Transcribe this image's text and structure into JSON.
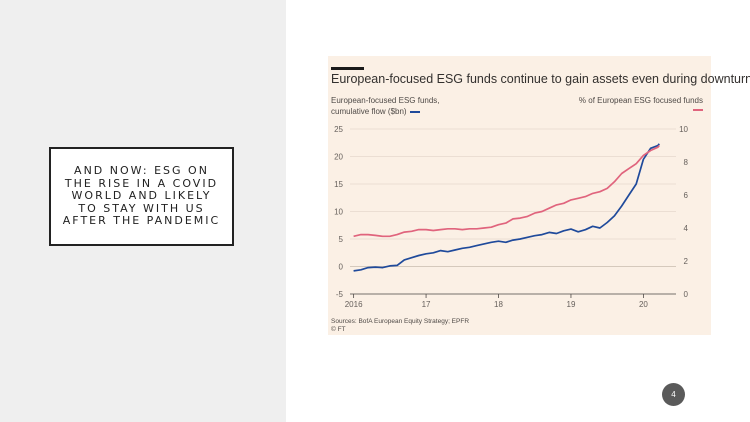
{
  "slide": {
    "heading": "And now: ESG on the rise in a Covid world and likely to stay with us after the pandemic",
    "page_number": "4"
  },
  "chart_data": {
    "type": "line",
    "title": "European-focused ESG funds continue to gain assets even during downturn",
    "left_axis_label": [
      "European-focused ESG funds,",
      "cumulative flow ($bn)"
    ],
    "right_axis_label": "% of European ESG focused funds",
    "source": [
      "Sources: BofA European Equity Strategy; EPFR",
      "© FT"
    ],
    "x_ticks": [
      {
        "value": 2016,
        "label": "2016"
      },
      {
        "value": 2017,
        "label": "17"
      },
      {
        "value": 2018,
        "label": "18"
      },
      {
        "value": 2019,
        "label": "19"
      },
      {
        "value": 2020,
        "label": "20"
      }
    ],
    "xlim": [
      2015.95,
      2020.45
    ],
    "ylim_left": [
      -5,
      25
    ],
    "ylim_right": [
      0,
      10
    ],
    "left_ticks": [
      -5,
      0,
      5,
      10,
      15,
      20,
      25
    ],
    "right_ticks": [
      0,
      2,
      4,
      6,
      8,
      10
    ],
    "grid": true,
    "series": [
      {
        "name": "European-focused ESG funds, cumulative flow ($bn)",
        "axis": "left",
        "color": "#1f4a9b",
        "points": [
          [
            2016.0,
            -0.8
          ],
          [
            2016.1,
            -0.6
          ],
          [
            2016.2,
            -0.2
          ],
          [
            2016.3,
            -0.1
          ],
          [
            2016.4,
            -0.2
          ],
          [
            2016.5,
            0.1
          ],
          [
            2016.6,
            0.2
          ],
          [
            2016.7,
            1.2
          ],
          [
            2016.8,
            1.6
          ],
          [
            2016.9,
            2.0
          ],
          [
            2017.0,
            2.3
          ],
          [
            2017.1,
            2.5
          ],
          [
            2017.2,
            2.9
          ],
          [
            2017.3,
            2.7
          ],
          [
            2017.4,
            3.0
          ],
          [
            2017.5,
            3.3
          ],
          [
            2017.6,
            3.5
          ],
          [
            2017.7,
            3.8
          ],
          [
            2017.8,
            4.1
          ],
          [
            2017.9,
            4.4
          ],
          [
            2018.0,
            4.6
          ],
          [
            2018.1,
            4.4
          ],
          [
            2018.2,
            4.8
          ],
          [
            2018.3,
            5.0
          ],
          [
            2018.4,
            5.3
          ],
          [
            2018.5,
            5.6
          ],
          [
            2018.6,
            5.8
          ],
          [
            2018.7,
            6.2
          ],
          [
            2018.8,
            6.0
          ],
          [
            2018.9,
            6.5
          ],
          [
            2019.0,
            6.8
          ],
          [
            2019.1,
            6.3
          ],
          [
            2019.2,
            6.7
          ],
          [
            2019.3,
            7.3
          ],
          [
            2019.4,
            7.0
          ],
          [
            2019.5,
            8.0
          ],
          [
            2019.6,
            9.2
          ],
          [
            2019.7,
            11.0
          ],
          [
            2019.8,
            13.0
          ],
          [
            2019.9,
            15.0
          ],
          [
            2020.0,
            19.5
          ],
          [
            2020.1,
            21.5
          ],
          [
            2020.2,
            22.0
          ],
          [
            2020.22,
            22.3
          ]
        ]
      },
      {
        "name": "% of European ESG focused funds",
        "axis": "right",
        "color": "#e0647d",
        "points": [
          [
            2016.0,
            3.5
          ],
          [
            2016.1,
            3.6
          ],
          [
            2016.2,
            3.6
          ],
          [
            2016.3,
            3.55
          ],
          [
            2016.4,
            3.5
          ],
          [
            2016.5,
            3.5
          ],
          [
            2016.6,
            3.6
          ],
          [
            2016.7,
            3.75
          ],
          [
            2016.8,
            3.8
          ],
          [
            2016.9,
            3.9
          ],
          [
            2017.0,
            3.9
          ],
          [
            2017.1,
            3.85
          ],
          [
            2017.2,
            3.9
          ],
          [
            2017.3,
            3.95
          ],
          [
            2017.4,
            3.95
          ],
          [
            2017.5,
            3.9
          ],
          [
            2017.6,
            3.95
          ],
          [
            2017.7,
            3.95
          ],
          [
            2017.8,
            4.0
          ],
          [
            2017.9,
            4.05
          ],
          [
            2018.0,
            4.2
          ],
          [
            2018.1,
            4.3
          ],
          [
            2018.2,
            4.55
          ],
          [
            2018.3,
            4.6
          ],
          [
            2018.4,
            4.7
          ],
          [
            2018.5,
            4.9
          ],
          [
            2018.6,
            5.0
          ],
          [
            2018.7,
            5.2
          ],
          [
            2018.8,
            5.4
          ],
          [
            2018.9,
            5.5
          ],
          [
            2019.0,
            5.7
          ],
          [
            2019.1,
            5.8
          ],
          [
            2019.2,
            5.9
          ],
          [
            2019.3,
            6.1
          ],
          [
            2019.4,
            6.2
          ],
          [
            2019.5,
            6.4
          ],
          [
            2019.6,
            6.8
          ],
          [
            2019.7,
            7.3
          ],
          [
            2019.8,
            7.6
          ],
          [
            2019.9,
            7.9
          ],
          [
            2020.0,
            8.4
          ],
          [
            2020.1,
            8.7
          ],
          [
            2020.2,
            8.9
          ],
          [
            2020.22,
            9.0
          ]
        ]
      }
    ]
  }
}
